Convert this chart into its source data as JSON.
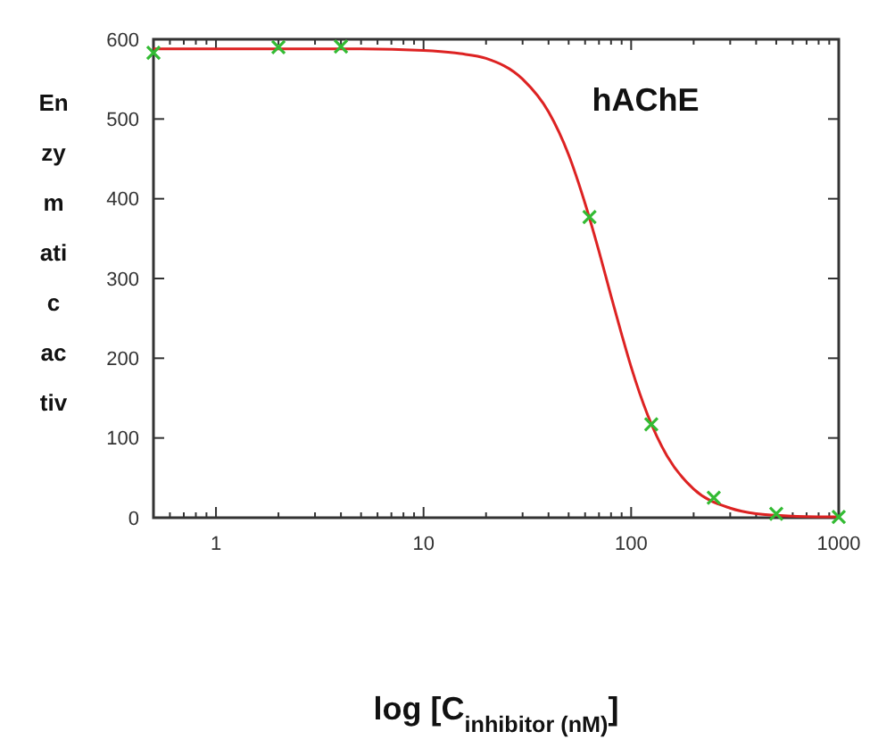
{
  "chart_data": {
    "type": "scatter",
    "xlabel": "log [C$_{inhibitor (nM)}$]",
    "ylabel": "Enzymatic activ",
    "annotations": [
      "hAChE"
    ],
    "log": "x",
    "grid": false,
    "xlim": [
      0.5,
      1000
    ],
    "xticks": [
      1,
      10,
      100,
      1000
    ],
    "ylim": [
      0,
      600
    ],
    "yticks": [
      0,
      100,
      200,
      300,
      400,
      500,
      600
    ],
    "series": [
      {
        "type": "line",
        "color": "#dd2222",
        "marker": "none",
        "line_style": "solid",
        "x": [
          0.5,
          1,
          2,
          5,
          10,
          15,
          20,
          30,
          40,
          50,
          60,
          70,
          80,
          90,
          100,
          120,
          150,
          200,
          300,
          400,
          600,
          1000
        ],
        "values": [
          588,
          588,
          588,
          588,
          586,
          582,
          576,
          550,
          509,
          455,
          394,
          334,
          278,
          230,
          189,
          129,
          76,
          36,
          12,
          5,
          2,
          1
        ]
      },
      {
        "color": "#33bb33",
        "marker": "cross",
        "x": [
          0.5,
          2,
          4,
          63,
          125,
          250,
          500,
          1000
        ],
        "values": [
          583,
          590,
          591,
          377,
          117,
          25,
          5,
          1
        ]
      }
    ]
  }
}
